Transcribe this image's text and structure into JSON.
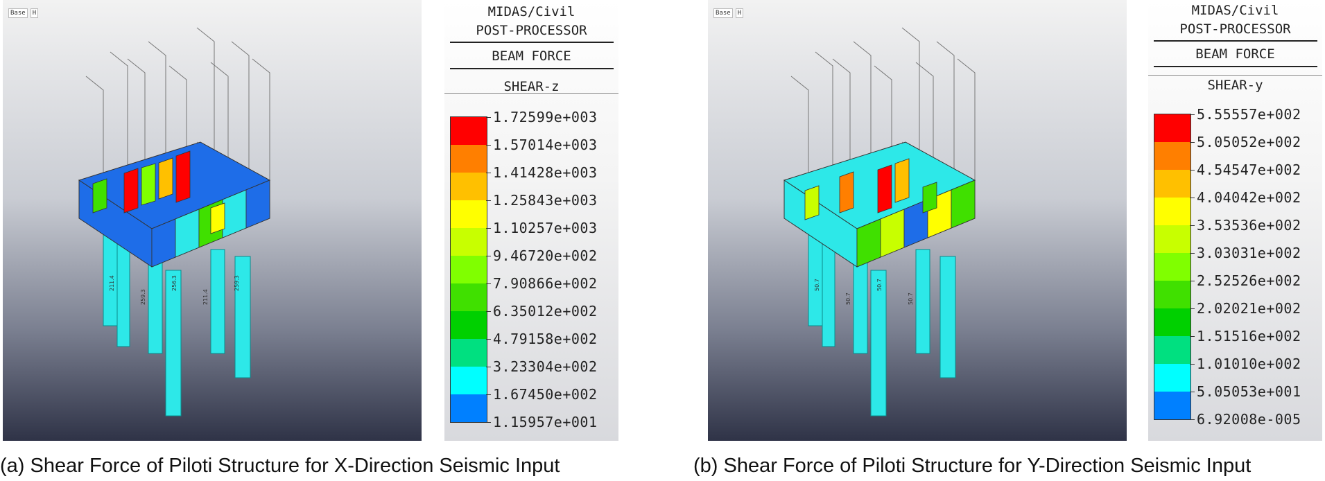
{
  "panels": [
    {
      "id": "a",
      "legend": {
        "title_line1": "MIDAS/Civil",
        "title_line2": "POST-PROCESSOR",
        "result_type": "BEAM FORCE",
        "component": "SHEAR-z",
        "levels": [
          "1.72599e+003",
          "1.57014e+003",
          "1.41428e+003",
          "1.25843e+003",
          "1.10257e+003",
          "9.46720e+002",
          "7.90866e+002",
          "6.35012e+002",
          "4.79158e+002",
          "3.23304e+002",
          "1.67450e+002",
          "1.15957e+001"
        ]
      },
      "toolbar": {
        "item1": "Base",
        "item2": "H"
      },
      "member_labels": [
        "211.4",
        "259.3",
        "256.3",
        "211.4",
        "259.3"
      ],
      "caption": "(a) Shear Force of Piloti Structure for X-Direction Seismic Input"
    },
    {
      "id": "b",
      "legend": {
        "title_line1": "MIDAS/Civil",
        "title_line2": "POST-PROCESSOR",
        "result_type": "BEAM FORCE",
        "component": "SHEAR-y",
        "levels": [
          "5.55557e+002",
          "5.05052e+002",
          "4.54547e+002",
          "4.04042e+002",
          "3.53536e+002",
          "3.03031e+002",
          "2.52526e+002",
          "2.02021e+002",
          "1.51516e+002",
          "1.01010e+002",
          "5.05053e+001",
          "6.92008e-005"
        ]
      },
      "toolbar": {
        "item1": "Base",
        "item2": "H"
      },
      "member_labels": [
        "50.7",
        "50.7",
        "50.7",
        "50.7"
      ],
      "caption": "(b) Shear Force of Piloti Structure for Y-Direction Seismic Input"
    }
  ],
  "colors": {
    "scale": [
      "#ff0000",
      "#ff7f00",
      "#ffc000",
      "#ffff00",
      "#c8ff00",
      "#80ff00",
      "#40e000",
      "#00d000",
      "#00e080",
      "#00ffff",
      "#0080ff"
    ],
    "frame": "#555555"
  }
}
